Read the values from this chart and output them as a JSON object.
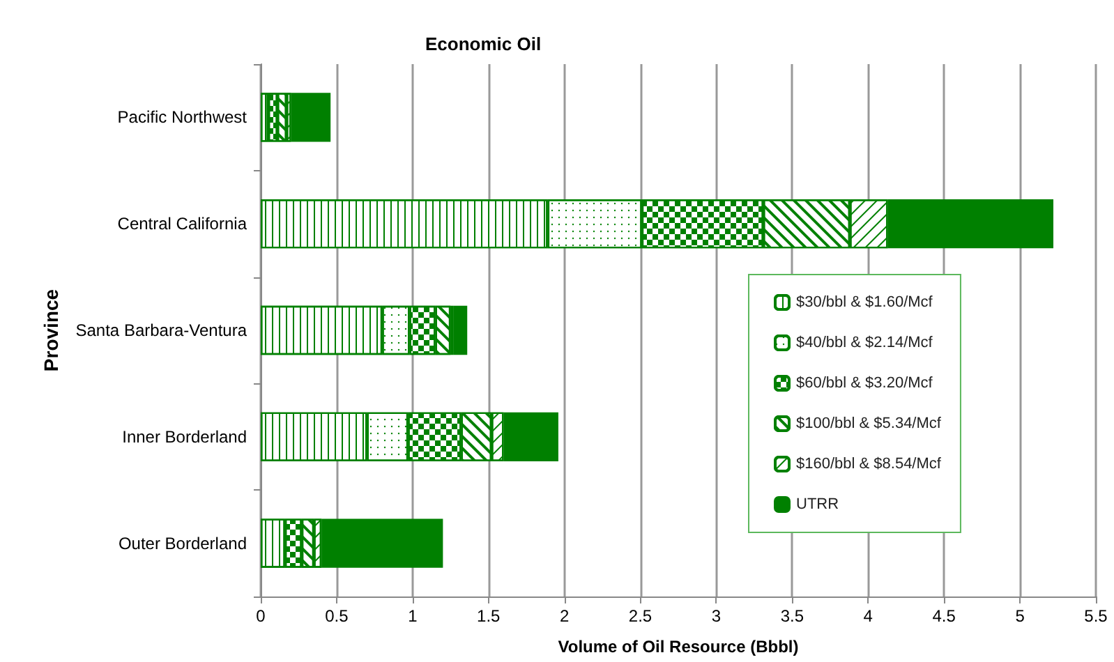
{
  "chart_data": {
    "type": "bar",
    "orientation": "horizontal",
    "stacked": true,
    "title": "Economic Oil",
    "xlabel": "Volume of Oil Resource (Bbbl)",
    "ylabel": "Province",
    "categories": [
      "Pacific Northwest",
      "Central California",
      "Santa Barbara-Ventura",
      "Inner Borderland",
      "Outer Borderland"
    ],
    "series": [
      {
        "name": "$30/bbl & $1.60/Mcf",
        "color": "#008000",
        "values": [
          0.05,
          1.89,
          0.8,
          0.7,
          0.16
        ]
      },
      {
        "name": "$40/bbl & $2.14/Mcf",
        "color": "#008000",
        "values": [
          null,
          0.62,
          0.18,
          0.27,
          null
        ]
      },
      {
        "name": "$60/bbl & $3.20/Mcf",
        "color": "#008000",
        "values": [
          0.06,
          0.8,
          0.17,
          0.35,
          0.11
        ]
      },
      {
        "name": "$100/bbl & $5.34/Mcf",
        "color": "#008000",
        "values": [
          0.06,
          0.57,
          0.1,
          0.2,
          0.08
        ]
      },
      {
        "name": "$160/bbl & $8.54/Mcf",
        "color": "#008000",
        "values": [
          0.03,
          0.25,
          0.02,
          0.08,
          0.05
        ]
      },
      {
        "name": "UTRR",
        "color": "#008000",
        "values": [
          0.26,
          1.09,
          0.09,
          0.36,
          0.8
        ]
      }
    ],
    "xlim": [
      0,
      5.5
    ],
    "xticks": [
      0,
      0.5,
      1,
      1.5,
      2,
      2.5,
      3,
      3.5,
      4,
      4.5,
      5,
      5.5
    ],
    "grid": "x",
    "legend": "right"
  }
}
